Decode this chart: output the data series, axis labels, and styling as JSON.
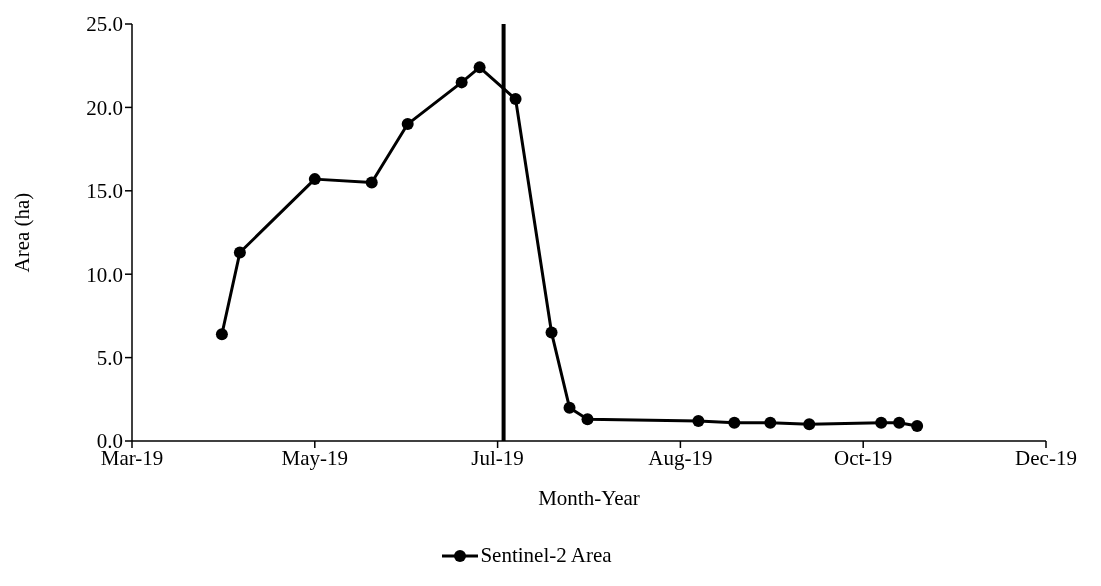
{
  "chart_data": {
    "type": "line",
    "xlabel": "Month-Year",
    "ylabel": "Area (ha)",
    "x": [
      "2019-03-31",
      "2019-04-06",
      "2019-05-01",
      "2019-05-20",
      "2019-06-01",
      "2019-06-19",
      "2019-06-25",
      "2019-07-07",
      "2019-07-19",
      "2019-07-25",
      "2019-07-31",
      "2019-09-06",
      "2019-09-18",
      "2019-09-30",
      "2019-10-13",
      "2019-11-06",
      "2019-11-12",
      "2019-11-18"
    ],
    "series": [
      {
        "name": "Sentinel-2 Area",
        "color": "#000000",
        "values": [
          6.4,
          11.3,
          15.7,
          15.5,
          19.0,
          21.5,
          22.4,
          20.5,
          6.5,
          2.0,
          1.3,
          1.2,
          1.1,
          1.1,
          1.0,
          1.1,
          1.1,
          0.9
        ]
      }
    ],
    "xlim": [
      "2019-03-01",
      "2019-12-31"
    ],
    "xticks": [
      {
        "value": "2019-03-01",
        "label": "Mar-19"
      },
      {
        "value": "2019-05-01",
        "label": "May-19"
      },
      {
        "value": "2019-07-01",
        "label": "Jul-19"
      },
      {
        "value": "2019-08-31",
        "label": "Aug-19"
      },
      {
        "value": "2019-10-31",
        "label": "Oct-19"
      },
      {
        "value": "2019-12-31",
        "label": "Dec-19"
      }
    ],
    "ylim": [
      0,
      25
    ],
    "yticks": [
      {
        "value": 0,
        "label": "0.0"
      },
      {
        "value": 5,
        "label": "5.0"
      },
      {
        "value": 10,
        "label": "10.0"
      },
      {
        "value": 15,
        "label": "15.0"
      },
      {
        "value": 20,
        "label": "20.0"
      },
      {
        "value": 25,
        "label": "25.0"
      }
    ],
    "ref_lines": [
      {
        "axis": "x",
        "value": "2019-07-03",
        "color": "#000000",
        "line_style": "solid"
      }
    ],
    "grid": false,
    "legend": "bottom",
    "marker": "circle",
    "line_style": "solid"
  }
}
